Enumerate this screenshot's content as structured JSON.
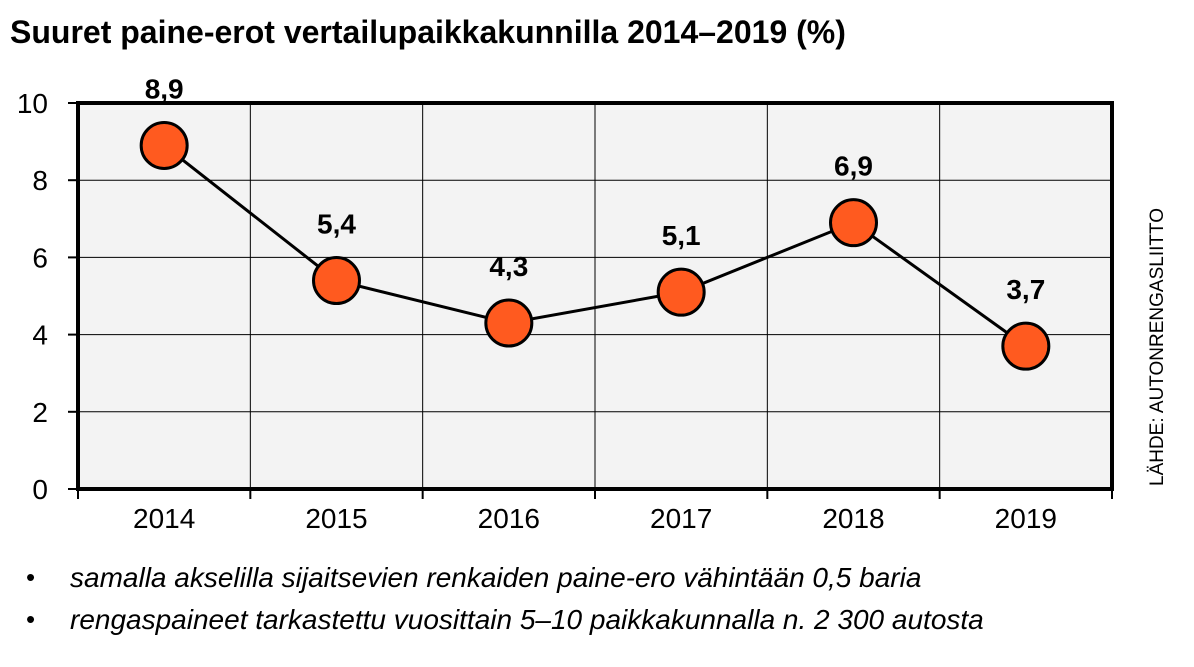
{
  "title": "Suuret paine-erot vertailupaikkakunnilla 2014–2019 (%)",
  "source": "LÄHDE: AUTONRENGASLIITTO",
  "notes": [
    "samalla akselilla sijaitsevien renkaiden paine-ero vähintään 0,5 baria",
    "rengaspaineet tarkastettu vuosittain 5–10 paikkakunnalla n. 2 300 autosta"
  ],
  "bullet": "•",
  "colors": {
    "marker": "#ff5a1f",
    "line": "#000000",
    "plot_bg": "#f3f3f3",
    "grid": "#000000"
  },
  "chart_data": {
    "type": "line",
    "title": "Suuret paine-erot vertailupaikkakunnilla 2014–2019 (%)",
    "categories": [
      "2014",
      "2015",
      "2016",
      "2017",
      "2018",
      "2019"
    ],
    "values": [
      8.9,
      5.4,
      4.3,
      5.1,
      6.9,
      3.7
    ],
    "data_labels": [
      "8,9",
      "5,4",
      "4,3",
      "5,1",
      "6,9",
      "3,7"
    ],
    "ylim": [
      0,
      10
    ],
    "yticks": [
      0,
      2,
      4,
      6,
      8,
      10
    ],
    "grid": true,
    "legend": "none"
  }
}
